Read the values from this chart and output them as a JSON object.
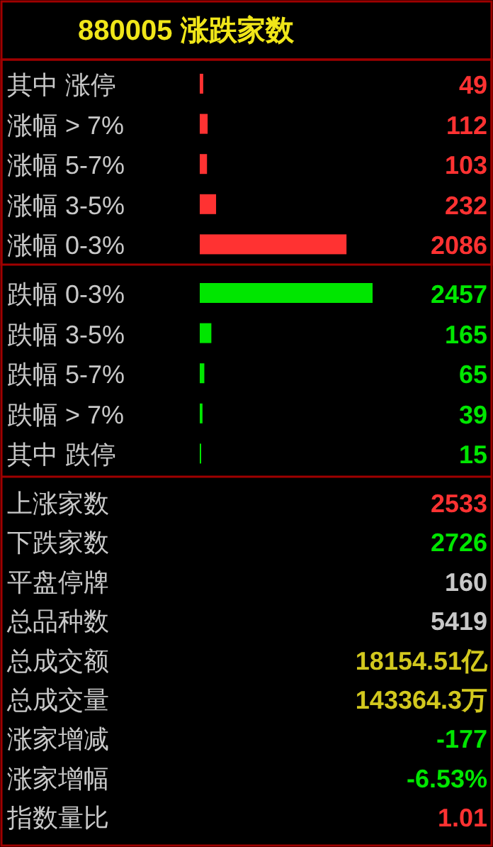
{
  "chart_data": [
    {
      "type": "bar",
      "orientation": "horizontal",
      "title": "880005 涨跌家数",
      "data_labels": true,
      "categories": [
        "其中 涨停",
        "涨幅 > 7%",
        "涨幅 5-7%",
        "涨幅 3-5%",
        "涨幅 0-3%",
        "跌幅 0-3%",
        "跌幅 3-5%",
        "跌幅 5-7%",
        "跌幅 > 7%",
        "其中 跌停"
      ],
      "values": [
        49,
        112,
        103,
        232,
        2086,
        2457,
        165,
        65,
        39,
        15
      ],
      "colors": [
        "#ff3232",
        "#ff3232",
        "#ff3232",
        "#ff3232",
        "#ff3232",
        "#00e600",
        "#00e600",
        "#00e600",
        "#00e600",
        "#00e600"
      ]
    },
    {
      "type": "other",
      "annotations": [
        "上涨家数",
        "2533",
        "下跌家数",
        "2726",
        "平盘停牌",
        "160",
        "总品种数",
        "5419",
        "总成交额",
        "18154.51亿",
        "总成交量",
        "143364.3万",
        "涨家增减",
        "-177",
        "涨家增幅",
        "-6.53%",
        "指数量比",
        "1.01"
      ],
      "colors": [
        "#ff3232",
        "#00e600",
        "#c8c8c8",
        "#c8c8c8",
        "#d2c81e",
        "#d2c81e",
        "#00e600",
        "#00e600",
        "#ff3232"
      ]
    }
  ]
}
